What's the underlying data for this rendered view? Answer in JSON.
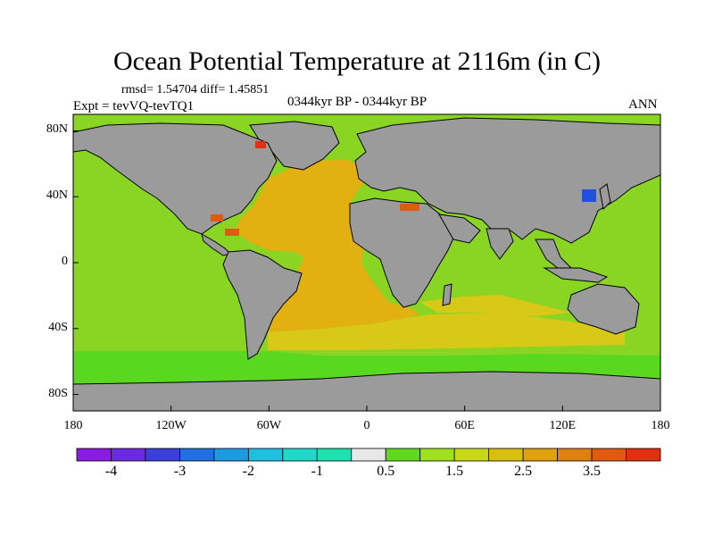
{
  "title": "Ocean Potential Temperature at 2116m (in C)",
  "stats": "rmsd= 1.54704 diff= 1.45851",
  "experiment": "Expt = tevVQ-tevTQ1",
  "period": "0344kyr BP - 0344kyr BP",
  "season": "ANN",
  "lat_ticks": [
    {
      "label": "80N",
      "value": 80
    },
    {
      "label": "40N",
      "value": 40
    },
    {
      "label": "0",
      "value": 0
    },
    {
      "label": "40S",
      "value": -40
    },
    {
      "label": "80S",
      "value": -80
    }
  ],
  "lon_ticks": [
    {
      "label": "180",
      "value": -180
    },
    {
      "label": "120W",
      "value": -120
    },
    {
      "label": "60W",
      "value": -60
    },
    {
      "label": "0",
      "value": 0
    },
    {
      "label": "60E",
      "value": 60
    },
    {
      "label": "120E",
      "value": 120
    },
    {
      "label": "180",
      "value": 180
    }
  ],
  "colorbar": {
    "colors": [
      "#8a1be0",
      "#6a2ae0",
      "#3a40d8",
      "#2070e0",
      "#1e9ae0",
      "#20bfe0",
      "#20d8c8",
      "#20e0b0",
      "#e8e8e8",
      "#60d820",
      "#a0e020",
      "#c8d818",
      "#d8c010",
      "#e0a010",
      "#e08010",
      "#e05a10",
      "#e03010"
    ],
    "labels": [
      {
        "text": "-4",
        "boundary": 1
      },
      {
        "text": "-3",
        "boundary": 3
      },
      {
        "text": "-2",
        "boundary": 5
      },
      {
        "text": "-1",
        "boundary": 7
      },
      {
        "text": "0.5",
        "boundary": 9
      },
      {
        "text": "1.5",
        "boundary": 11
      },
      {
        "text": "2.5",
        "boundary": 13
      },
      {
        "text": "3.5",
        "boundary": 15
      }
    ]
  },
  "field_colors": {
    "ocean_default": "#8ad424",
    "southern_ocean": "#5ad820",
    "atlantic_warm": "#e2b010",
    "atlantic_mid": "#d8c818",
    "land": "#9b9b9b",
    "hotspot": "#e05a10",
    "hotspot_strong": "#e03010",
    "cold_spot": "#2050e0"
  }
}
